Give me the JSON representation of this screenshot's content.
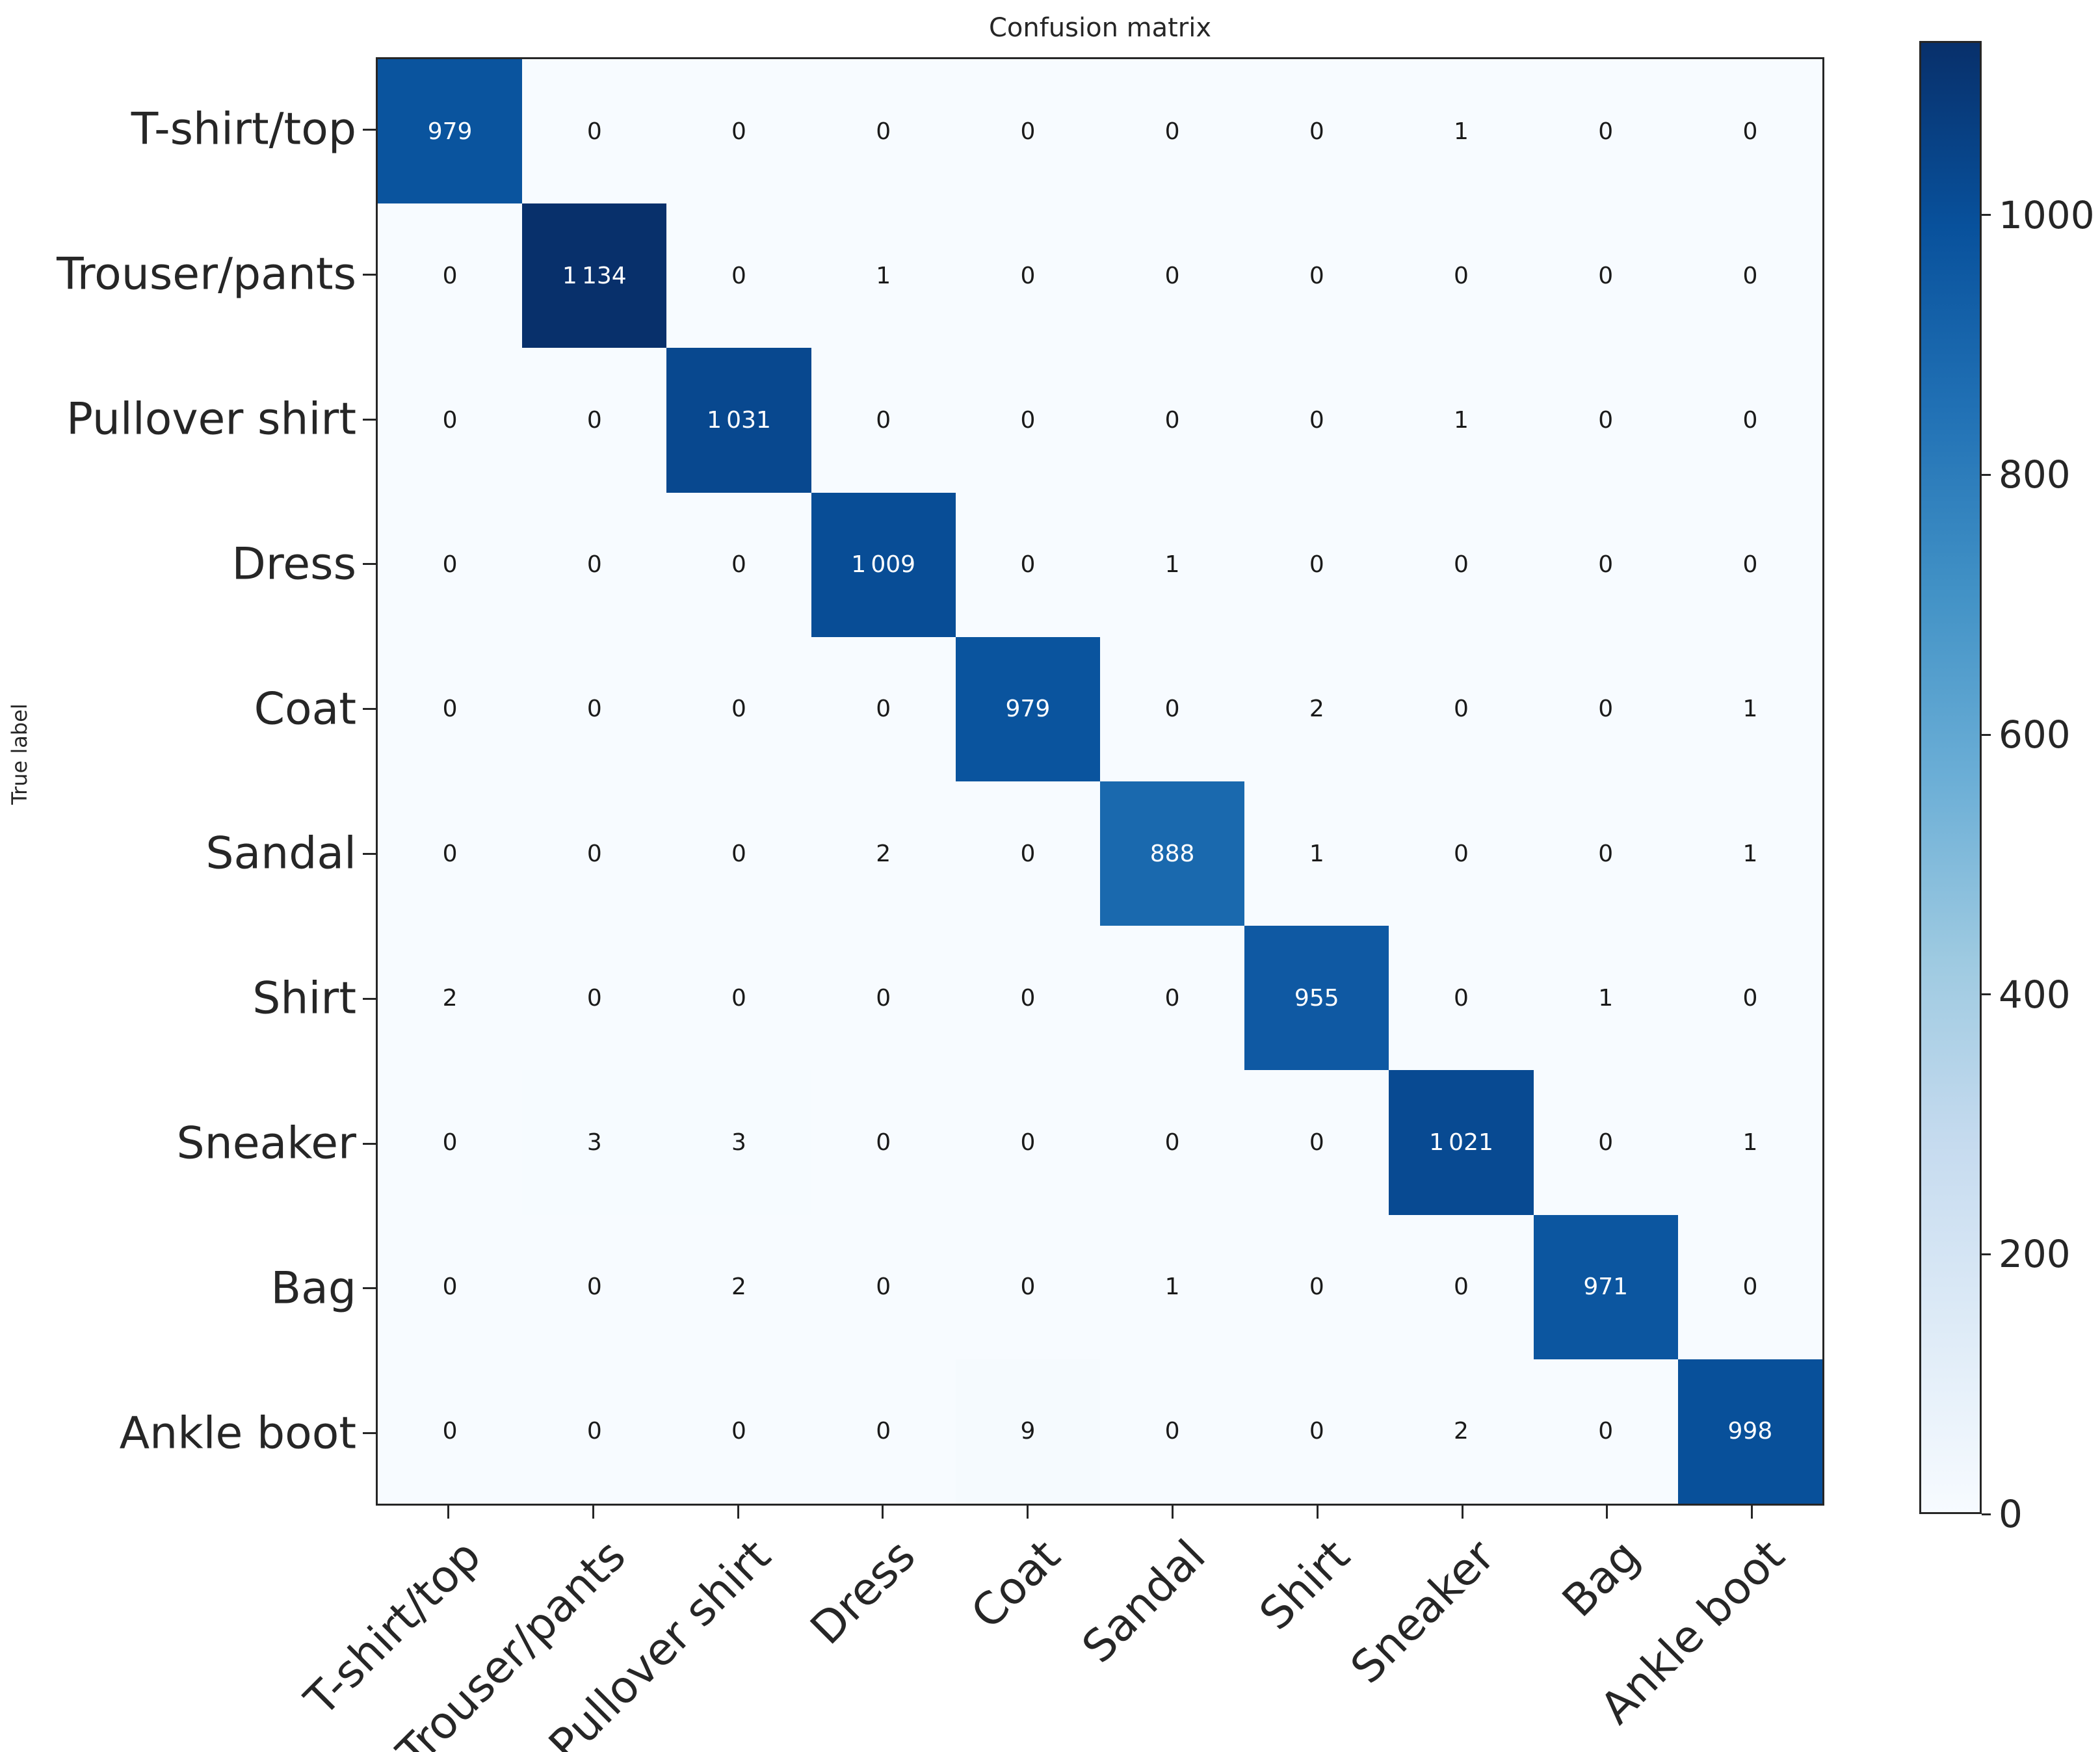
{
  "chart_data": {
    "type": "heatmap",
    "title": "Confusion matrix",
    "xlabel": "",
    "ylabel": "True label",
    "categories": [
      "T-shirt/top",
      "Trouser/pants",
      "Pullover shirt",
      "Dress",
      "Coat",
      "Sandal",
      "Shirt",
      "Sneaker",
      "Bag",
      "Ankle boot"
    ],
    "matrix": [
      [
        979,
        0,
        0,
        0,
        0,
        0,
        0,
        1,
        0,
        0
      ],
      [
        0,
        1134,
        0,
        1,
        0,
        0,
        0,
        0,
        0,
        0
      ],
      [
        0,
        0,
        1031,
        0,
        0,
        0,
        0,
        1,
        0,
        0
      ],
      [
        0,
        0,
        0,
        1009,
        0,
        1,
        0,
        0,
        0,
        0
      ],
      [
        0,
        0,
        0,
        0,
        979,
        0,
        2,
        0,
        0,
        1
      ],
      [
        0,
        0,
        0,
        2,
        0,
        888,
        1,
        0,
        0,
        1
      ],
      [
        2,
        0,
        0,
        0,
        0,
        0,
        955,
        0,
        1,
        0
      ],
      [
        0,
        3,
        3,
        0,
        0,
        0,
        0,
        1021,
        0,
        1
      ],
      [
        0,
        0,
        2,
        0,
        0,
        1,
        0,
        0,
        971,
        0
      ],
      [
        0,
        0,
        0,
        0,
        9,
        0,
        0,
        2,
        0,
        998
      ]
    ],
    "colormap": "Blues",
    "colormap_anchors": [
      "#f7fbff",
      "#deebf7",
      "#c6dbef",
      "#9ecae1",
      "#6baed6",
      "#4292c6",
      "#2171b5",
      "#08519c",
      "#08306b"
    ],
    "vmin": 0,
    "vmax": 1134,
    "colorbar_ticks": [
      0,
      200,
      400,
      600,
      800,
      1000
    ],
    "legend_position": "right-colorbar",
    "grid": false,
    "x_tick_rotation_deg": 45,
    "axis_color": "#262626",
    "cell_text_light": "#ffffff",
    "cell_text_dark": "#1a1a1a",
    "thousands_separator": "thin-space"
  }
}
